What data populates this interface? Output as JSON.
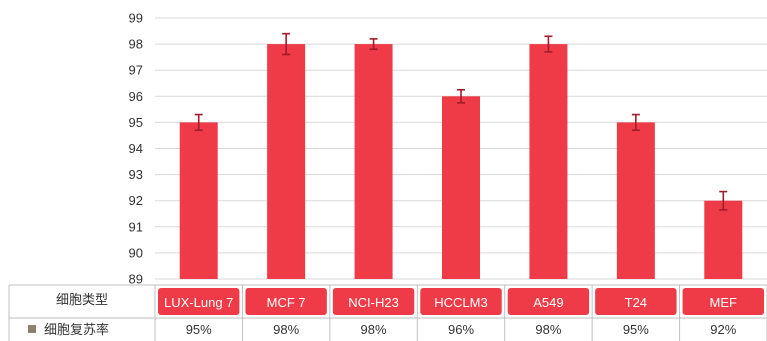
{
  "chart_data": {
    "type": "bar",
    "categories": [
      "LUX-Lung 7",
      "MCF 7",
      "NCI-H23",
      "HCCLM3",
      "A549",
      "T24",
      "MEF"
    ],
    "values": [
      95,
      98,
      98,
      96,
      98,
      95,
      92
    ],
    "error": [
      0.3,
      0.4,
      0.2,
      0.25,
      0.3,
      0.3,
      0.35
    ],
    "ylim": [
      89,
      99
    ],
    "yticks": [
      89,
      90,
      91,
      92,
      93,
      94,
      95,
      96,
      97,
      98,
      99
    ],
    "grid": true,
    "series": [
      {
        "name": "细胞复苏率",
        "values": [
          95,
          98,
          98,
          96,
          98,
          95,
          92
        ]
      }
    ],
    "table": {
      "header_label": "细胞类型",
      "row_label": "细胞复苏率",
      "row_values": [
        "95%",
        "98%",
        "98%",
        "96%",
        "98%",
        "95%",
        "92%"
      ]
    },
    "colors": {
      "bar": "#ee3b47",
      "error_bar": "#a11d2a",
      "legend_key": "#8a8170"
    }
  }
}
